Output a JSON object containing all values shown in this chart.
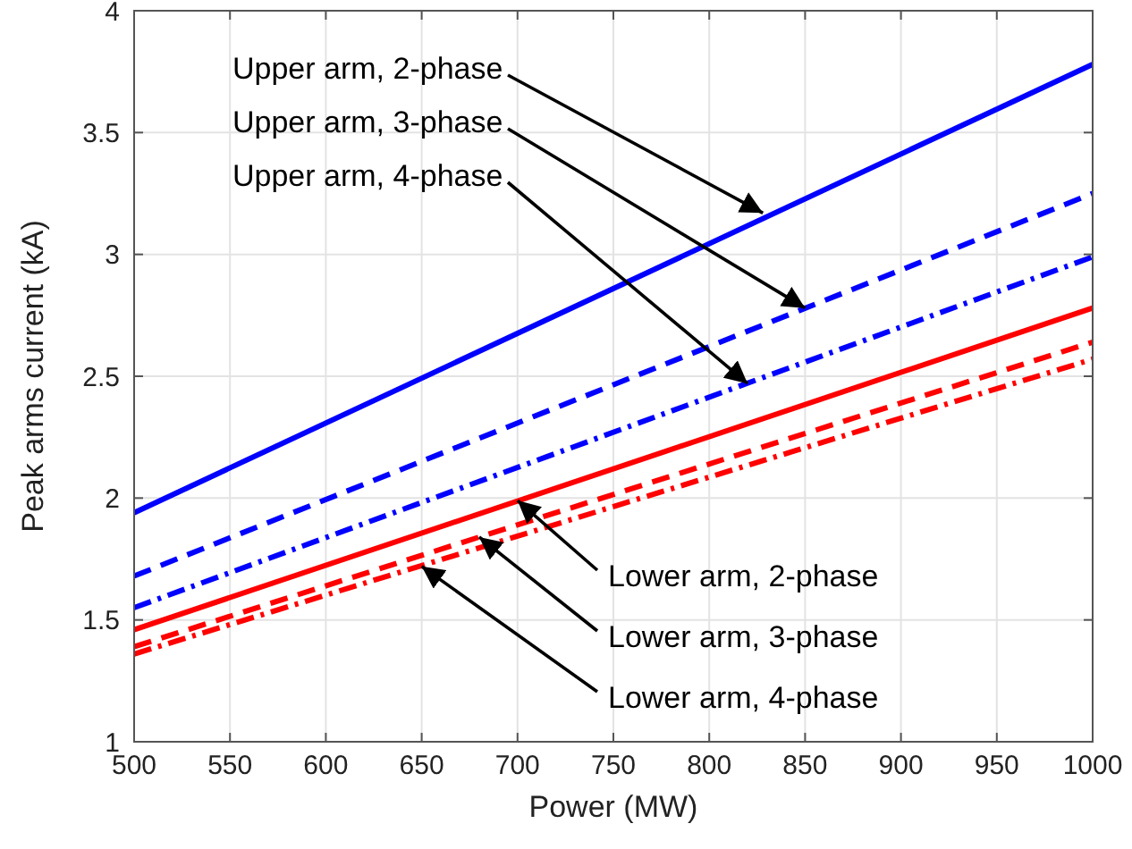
{
  "chart_data": {
    "type": "line",
    "xlabel": "Power (MW)",
    "ylabel": "Peak arms current (kA)",
    "x": [
      500,
      1000
    ],
    "series": [
      {
        "color": "#0000ff",
        "values": [
          1.94,
          3.78
        ],
        "line_style": "solid"
      },
      {
        "color": "#0000ff",
        "values": [
          1.68,
          3.25
        ],
        "line_style": "dashed"
      },
      {
        "color": "#0000ff",
        "values": [
          1.55,
          2.99
        ],
        "line_style": "dashdot"
      },
      {
        "color": "#ff0000",
        "values": [
          1.46,
          2.78
        ],
        "line_style": "solid"
      },
      {
        "color": "#ff0000",
        "values": [
          1.39,
          2.64
        ],
        "line_style": "dashed"
      },
      {
        "color": "#ff0000",
        "values": [
          1.36,
          2.57
        ],
        "line_style": "dashdot"
      }
    ],
    "annotations": [
      {
        "text": "Upper arm, 2-phase",
        "x": 828,
        "y": 3.17
      },
      {
        "text": "Upper arm, 3-phase",
        "x": 850,
        "y": 2.78
      },
      {
        "text": "Upper arm, 4-phase",
        "x": 820,
        "y": 2.47
      },
      {
        "text": "Lower arm, 2-phase",
        "x": 700,
        "y": 1.99
      },
      {
        "text": "Lower arm, 3-phase",
        "x": 680,
        "y": 1.84
      },
      {
        "text": "Lower arm, 4-phase",
        "x": 650,
        "y": 1.72
      }
    ],
    "xlim": [
      500,
      1000
    ],
    "xticks": [
      500,
      550,
      600,
      650,
      700,
      750,
      800,
      850,
      900,
      950,
      1000
    ],
    "ylim": [
      1,
      4
    ],
    "yticks": [
      1,
      1.5,
      2,
      2.5,
      3,
      3.5,
      4
    ],
    "grid": true
  }
}
